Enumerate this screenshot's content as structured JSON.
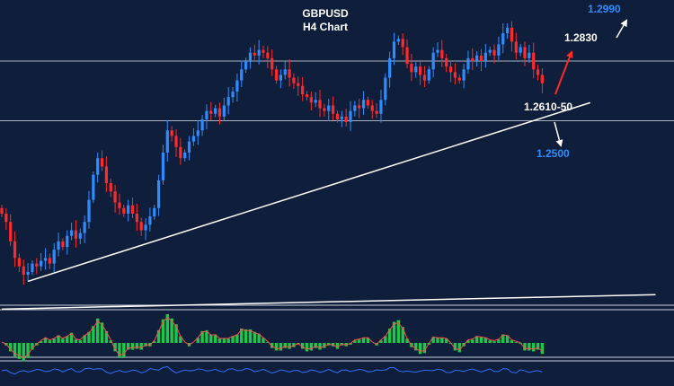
{
  "chart_data": {
    "type": "candlestick",
    "title": "GBPUSD",
    "subtitle": "H4 Chart",
    "levels": [
      {
        "label": "1.2990",
        "color": "#2f8cff"
      },
      {
        "label": "1.2830",
        "color": "#ffffff"
      },
      {
        "label": "1.2610-50",
        "color": "#ffffff"
      },
      {
        "label": "1.2500",
        "color": "#2f8cff"
      }
    ],
    "y_range": [
      1.195,
      1.305
    ],
    "horizontal_lines": [
      1.283,
      1.2615
    ],
    "trendlines": [
      {
        "name": "rising support",
        "from_bar": 6,
        "from_price": 1.2036,
        "to_bar": 135,
        "to_price": 1.268
      },
      {
        "name": "long-term support",
        "from_bar": 0,
        "from_price": 1.1936,
        "to_bar": 150,
        "to_price": 1.1988
      }
    ],
    "arrows": [
      {
        "meaning": "bullish target",
        "color": "#ff2a2a"
      },
      {
        "meaning": "breakout target",
        "color": "#ffffff"
      },
      {
        "meaning": "bearish target",
        "color": "#ffffff"
      }
    ],
    "candle_colors": {
      "up": "#2f8cff",
      "down": "#ff2a2a"
    },
    "close": [
      1.228,
      1.225,
      1.218,
      1.212,
      1.209,
      1.206,
      1.207,
      1.21,
      1.209,
      1.211,
      1.212,
      1.21,
      1.215,
      1.218,
      1.216,
      1.22,
      1.222,
      1.219,
      1.221,
      1.225,
      1.233,
      1.242,
      1.248,
      1.245,
      1.239,
      1.236,
      1.232,
      1.23,
      1.228,
      1.231,
      1.228,
      1.225,
      1.222,
      1.224,
      1.227,
      1.23,
      1.24,
      1.25,
      1.258,
      1.256,
      1.252,
      1.248,
      1.25,
      1.254,
      1.256,
      1.258,
      1.262,
      1.265,
      1.264,
      1.266,
      1.263,
      1.267,
      1.27,
      1.272,
      1.276,
      1.28,
      1.283,
      1.286,
      1.285,
      1.287,
      1.286,
      1.284,
      1.28,
      1.276,
      1.278,
      1.28,
      1.277,
      1.275,
      1.274,
      1.271,
      1.27,
      1.268,
      1.269,
      1.266,
      1.265,
      1.267,
      1.264,
      1.262,
      1.263,
      1.261,
      1.265,
      1.267,
      1.266,
      1.269,
      1.267,
      1.265,
      1.264,
      1.269,
      1.277,
      1.284,
      1.29,
      1.291,
      1.288,
      1.282,
      1.279,
      1.281,
      1.278,
      1.276,
      1.28,
      1.286,
      1.287,
      1.284,
      1.281,
      1.279,
      1.277,
      1.276,
      1.28,
      1.284,
      1.283,
      1.285,
      1.283,
      1.286,
      1.287,
      1.285,
      1.289,
      1.293,
      1.295,
      1.29,
      1.286,
      1.288,
      1.284,
      1.286,
      1.28,
      1.278,
      1.275
    ],
    "oscillators": [
      {
        "type": "histogram",
        "color": "#1ec74a",
        "signal_color": "#ff4d4d"
      },
      {
        "type": "line",
        "color": "#2f6fff"
      }
    ]
  }
}
